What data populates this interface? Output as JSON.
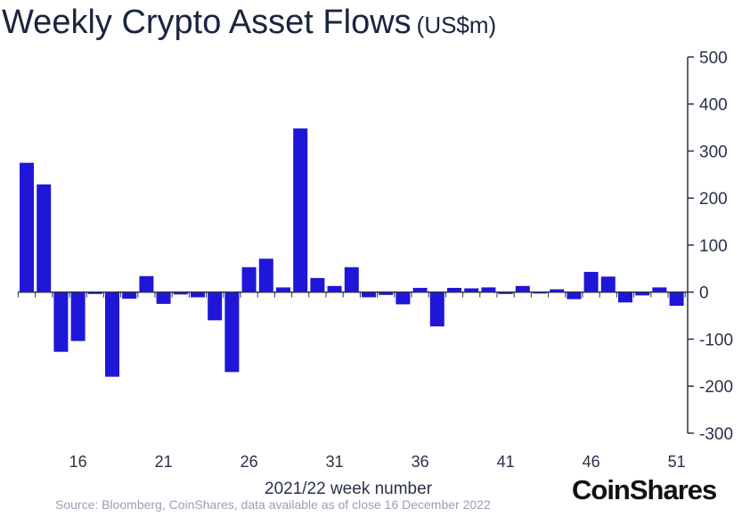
{
  "chart_data": {
    "type": "bar",
    "title": "Weekly Crypto Asset Flows",
    "unit": "(US$m)",
    "xlabel": "2021/22 week number",
    "ylabel": "",
    "ylim": [
      -300,
      500
    ],
    "yticks": [
      500,
      400,
      300,
      200,
      100,
      0,
      -100,
      -200,
      -300
    ],
    "xtick_labels": [
      "16",
      "21",
      "26",
      "31",
      "36",
      "41",
      "46",
      "51"
    ],
    "x": [
      13,
      14,
      15,
      16,
      17,
      18,
      19,
      20,
      21,
      22,
      23,
      24,
      25,
      26,
      27,
      28,
      29,
      30,
      31,
      32,
      33,
      34,
      35,
      36,
      37,
      38,
      39,
      40,
      41,
      42,
      43,
      44,
      45,
      46,
      47,
      48,
      49,
      50,
      51
    ],
    "values": [
      275,
      229,
      -127,
      -104,
      -4,
      -180,
      -14,
      34,
      -25,
      -5,
      -11,
      -60,
      -170,
      53,
      71,
      10,
      348,
      30,
      13,
      53,
      -11,
      -6,
      -26,
      9,
      -73,
      9,
      8,
      10,
      -4,
      13,
      -3,
      6,
      -15,
      43,
      33,
      -22,
      -7,
      10,
      -29
    ],
    "bar_color": "#1f16d8",
    "axis_position": "right",
    "grid": false
  },
  "source": "Source: Bloomberg, CoinShares, data available as of close 16 December 2022",
  "logo": "CoinShares"
}
